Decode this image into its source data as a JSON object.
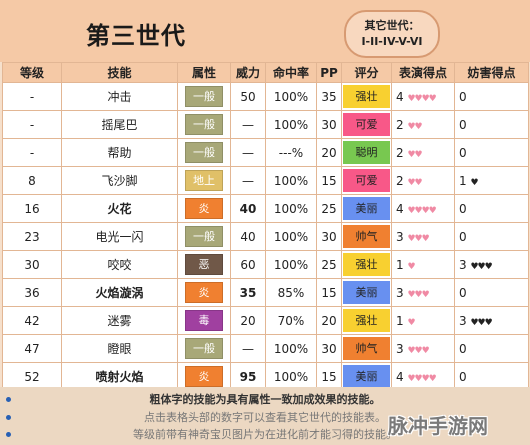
{
  "header": {
    "title": "第三世代",
    "other_gen_label": "其它世代：",
    "other_gen_list": "I-II-IV-V-VI"
  },
  "columns": [
    "等级",
    "技能",
    "属性",
    "威力",
    "命中率",
    "PP",
    "评分",
    "表演得点",
    "妨害得点"
  ],
  "type_colors": {
    "一般": "#a8a878",
    "地上": "#e0c068",
    "炎": "#f08030",
    "恶": "#705848",
    "毒": "#a040a0"
  },
  "condition_colors": {
    "强壮": "#f8d030",
    "可爱": "#f85888",
    "聪明": "#78c850",
    "美丽": "#6890f0",
    "帅气": "#f08030"
  },
  "rows": [
    {
      "level": "-",
      "move": "冲击",
      "bold": false,
      "type": "一般",
      "power": "50",
      "accuracy": "100%",
      "pp": "35",
      "condition": "强壮",
      "appeal": "4",
      "appeal_hearts": "♥♥♥♥",
      "jam": "0",
      "jam_hearts": ""
    },
    {
      "level": "-",
      "move": "摇尾巴",
      "bold": false,
      "type": "一般",
      "power": "—",
      "accuracy": "100%",
      "pp": "30",
      "condition": "可爱",
      "appeal": "2",
      "appeal_hearts": "♥♥",
      "jam": "0",
      "jam_hearts": ""
    },
    {
      "level": "-",
      "move": "帮助",
      "bold": false,
      "type": "一般",
      "power": "—",
      "accuracy": "---%",
      "pp": "20",
      "condition": "聪明",
      "appeal": "2",
      "appeal_hearts": "♥♥",
      "jam": "0",
      "jam_hearts": ""
    },
    {
      "level": "8",
      "move": "飞沙脚",
      "bold": false,
      "type": "地上",
      "power": "—",
      "accuracy": "100%",
      "pp": "15",
      "condition": "可爱",
      "appeal": "2",
      "appeal_hearts": "♥♥",
      "jam": "1",
      "jam_hearts": "♥"
    },
    {
      "level": "16",
      "move": "火花",
      "bold": true,
      "type": "炎",
      "power": "40",
      "accuracy": "100%",
      "pp": "25",
      "condition": "美丽",
      "appeal": "4",
      "appeal_hearts": "♥♥♥♥",
      "jam": "0",
      "jam_hearts": ""
    },
    {
      "level": "23",
      "move": "电光一闪",
      "bold": false,
      "type": "一般",
      "power": "40",
      "accuracy": "100%",
      "pp": "30",
      "condition": "帅气",
      "appeal": "3",
      "appeal_hearts": "♥♥♥",
      "jam": "0",
      "jam_hearts": ""
    },
    {
      "level": "30",
      "move": "咬咬",
      "bold": false,
      "type": "恶",
      "power": "60",
      "accuracy": "100%",
      "pp": "25",
      "condition": "强壮",
      "appeal": "1",
      "appeal_hearts": "♥",
      "jam": "3",
      "jam_hearts": "♥♥♥"
    },
    {
      "level": "36",
      "move": "火焰漩涡",
      "bold": true,
      "type": "炎",
      "power": "35",
      "accuracy": "85%",
      "pp": "15",
      "condition": "美丽",
      "appeal": "3",
      "appeal_hearts": "♥♥♥",
      "jam": "0",
      "jam_hearts": ""
    },
    {
      "level": "42",
      "move": "迷雾",
      "bold": false,
      "type": "毒",
      "power": "20",
      "accuracy": "70%",
      "pp": "20",
      "condition": "强壮",
      "appeal": "1",
      "appeal_hearts": "♥",
      "jam": "3",
      "jam_hearts": "♥♥♥"
    },
    {
      "level": "47",
      "move": "瞪眼",
      "bold": false,
      "type": "一般",
      "power": "—",
      "accuracy": "100%",
      "pp": "30",
      "condition": "帅气",
      "appeal": "3",
      "appeal_hearts": "♥♥♥",
      "jam": "0",
      "jam_hearts": ""
    },
    {
      "level": "52",
      "move": "喷射火焰",
      "bold": true,
      "type": "炎",
      "power": "95",
      "accuracy": "100%",
      "pp": "15",
      "condition": "美丽",
      "appeal": "4",
      "appeal_hearts": "♥♥♥♥",
      "jam": "0",
      "jam_hearts": ""
    }
  ],
  "footer": {
    "note1": "粗体字的技能为具有属性一致加成效果的技能。",
    "note2": "点击表格头部的数字可以查看其它世代的技能表。",
    "note3": "等级前带有神奇宝贝图片为在进化前才能习得的技能。"
  },
  "watermark": "脉冲手游网"
}
